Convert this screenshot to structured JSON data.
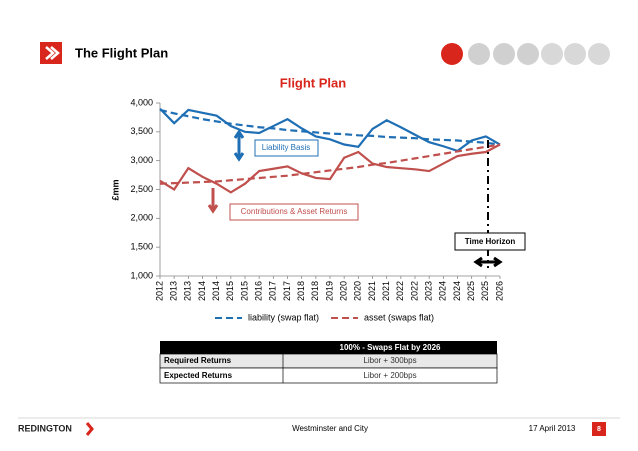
{
  "header": {
    "title": "The Flight Plan"
  },
  "chart_data": {
    "type": "line",
    "title": "Flight Plan",
    "y_label": "£mm",
    "categories": [
      "2012",
      "2013",
      "2013",
      "2014",
      "2014",
      "2015",
      "2015",
      "2016",
      "2017",
      "2017",
      "2018",
      "2018",
      "2019",
      "2020",
      "2020",
      "2021",
      "2021",
      "2022",
      "2022",
      "2023",
      "2024",
      "2024",
      "2025",
      "2025",
      "2026"
    ],
    "series": [
      {
        "color": "#1f6fb5",
        "dashed": false,
        "values": [
          3900,
          3650,
          3880,
          3830,
          3780,
          3600,
          3500,
          3480,
          3600,
          3720,
          3560,
          3420,
          3370,
          3280,
          3240,
          3550,
          3700,
          3580,
          3450,
          3320,
          3250,
          3170,
          3350,
          3420,
          3280
        ]
      },
      {
        "name": "liability (swap flat)",
        "color": "#1f6fb5",
        "dashed": true,
        "values": [
          3880,
          3820,
          3770,
          3720,
          3680,
          3640,
          3610,
          3580,
          3560,
          3530,
          3510,
          3490,
          3470,
          3460,
          3440,
          3430,
          3410,
          3400,
          3390,
          3370,
          3360,
          3350,
          3330,
          3310,
          3280
        ]
      },
      {
        "color": "#c0504d",
        "dashed": false,
        "values": [
          2650,
          2500,
          2870,
          2720,
          2600,
          2450,
          2600,
          2820,
          2860,
          2900,
          2780,
          2700,
          2680,
          3050,
          3150,
          2950,
          2890,
          2870,
          2850,
          2820,
          2950,
          3080,
          3120,
          3150,
          3280
        ]
      },
      {
        "name": "asset (swaps flat)",
        "color": "#c0504d",
        "dashed": true,
        "values": [
          2600,
          2610,
          2620,
          2630,
          2640,
          2660,
          2680,
          2700,
          2720,
          2740,
          2770,
          2800,
          2830,
          2860,
          2890,
          2930,
          2960,
          3000,
          3040,
          3080,
          3120,
          3160,
          3200,
          3240,
          3280
        ]
      }
    ],
    "ylim": [
      1000,
      4000
    ],
    "yticks": [
      {
        "value": 1000,
        "label": "1,000"
      },
      {
        "value": 1500,
        "label": "1,500"
      },
      {
        "value": 2000,
        "label": "2,000"
      },
      {
        "value": 2500,
        "label": "2,500"
      },
      {
        "value": 3000,
        "label": "3,000"
      },
      {
        "value": 3500,
        "label": "3,500"
      },
      {
        "value": 4000,
        "label": "4,000"
      }
    ],
    "grid": false,
    "annotations": [
      "Liability Basis",
      "Contributions & Asset Returns",
      "Time Horizon"
    ]
  },
  "table": {
    "header": "100% - Swaps Flat by 2026",
    "rows": [
      [
        "Required Returns",
        "Libor + 300bps"
      ],
      [
        "Expected Returns",
        "Libor + 200bps"
      ]
    ]
  },
  "footer": {
    "logo": "REDINGTON",
    "center": "Westminster and City",
    "date": "17 April 2013",
    "page": "8"
  }
}
